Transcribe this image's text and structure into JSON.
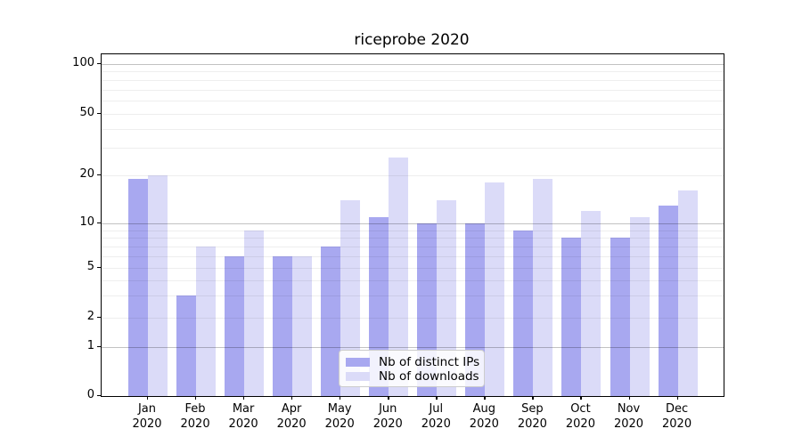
{
  "chart_data": {
    "type": "bar",
    "title": "riceprobe 2020",
    "categories": [
      "Jan",
      "Feb",
      "Mar",
      "Apr",
      "May",
      "Jun",
      "Jul",
      "Aug",
      "Sep",
      "Oct",
      "Nov",
      "Dec"
    ],
    "category_year": "2020",
    "series": [
      {
        "name": "Nb of distinct IPs",
        "color": "#a8a8f0",
        "values": [
          19,
          3,
          6,
          6,
          7,
          11,
          10,
          10,
          9,
          8,
          8,
          13
        ]
      },
      {
        "name": "Nb of downloads",
        "color": "#dbdbf8",
        "values": [
          20,
          7,
          9,
          6,
          14,
          26,
          14,
          18,
          19,
          12,
          11,
          16
        ]
      }
    ],
    "y_axis": {
      "scale": "log above 1, linear 0-1",
      "ticks": [
        0,
        1,
        2,
        5,
        10,
        20,
        50,
        100
      ],
      "major_gridlines": [
        1,
        10,
        100
      ],
      "minor_gridlines": [
        2,
        3,
        4,
        5,
        6,
        7,
        8,
        9,
        20,
        30,
        40,
        50,
        60,
        70,
        80,
        90
      ],
      "ylim": [
        0,
        112
      ]
    },
    "legend": {
      "position": "lower center",
      "entries": [
        "Nb of distinct IPs",
        "Nb of downloads"
      ]
    },
    "grid": "on"
  }
}
